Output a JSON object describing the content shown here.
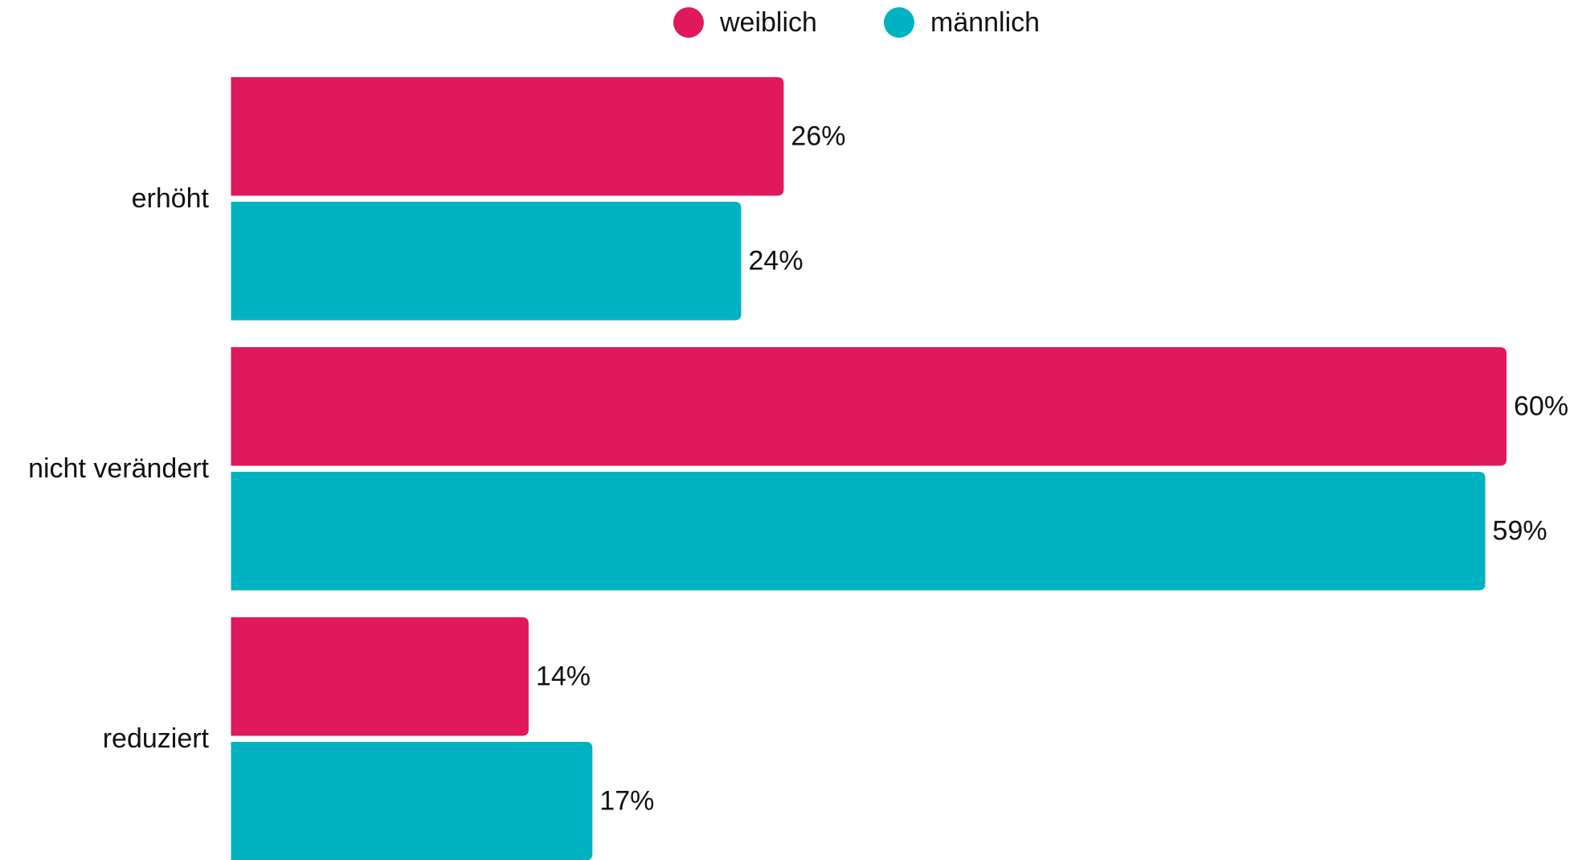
{
  "chart_data": {
    "type": "bar",
    "orientation": "horizontal",
    "categories": [
      "erhöht",
      "nicht verändert",
      "reduziert"
    ],
    "series": [
      {
        "name": "weiblich",
        "color": "#e0185c",
        "values": [
          26,
          60,
          14
        ],
        "value_labels": [
          "26%",
          "60%",
          "14%"
        ]
      },
      {
        "name": "männlich",
        "color": "#00b3c2",
        "values": [
          24,
          59,
          17
        ],
        "value_labels": [
          "24%",
          "59%",
          "17%"
        ]
      }
    ],
    "legend": "top"
  }
}
